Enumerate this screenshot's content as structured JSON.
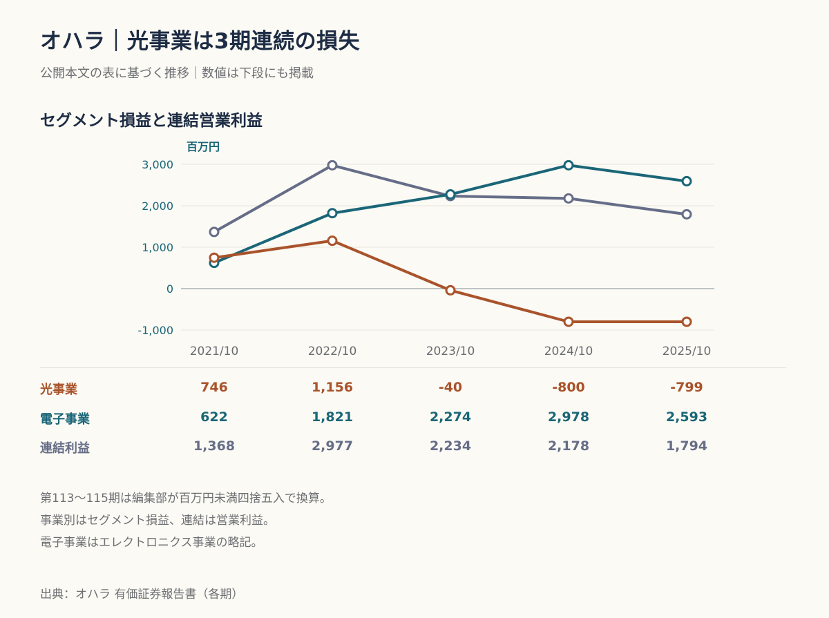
{
  "title": "オハラ｜光事業は3期連続の損失",
  "subtitle": "公開本文の表に基づく推移｜数値は下段にも掲載",
  "section_title": "セグメント損益と連結営業利益",
  "colors": {
    "optical": "#a9532b",
    "electronics": "#1a6678",
    "consolidated": "#666d88",
    "background": "#fbfaf4"
  },
  "chart_data": {
    "type": "line",
    "unit": "百万円",
    "categories": [
      "2021/10",
      "2022/10",
      "2023/10",
      "2024/10",
      "2025/10"
    ],
    "y_ticks": [
      "3,000",
      "2,000",
      "1,000",
      "0",
      "-1,000"
    ],
    "ylim": [
      -1000,
      3000
    ],
    "grid": true,
    "series": [
      {
        "name": "連結利益",
        "values": [
          1368,
          2977,
          2234,
          2178,
          1794
        ]
      },
      {
        "name": "電子事業",
        "values": [
          622,
          1821,
          2274,
          2978,
          2593
        ]
      },
      {
        "name": "光事業",
        "values": [
          746,
          1156,
          -40,
          -800,
          -799
        ]
      }
    ]
  },
  "table": {
    "rows": [
      {
        "label": "光事業",
        "values": [
          "746",
          "1,156",
          "-40",
          "-800",
          "-799"
        ]
      },
      {
        "label": "電子事業",
        "values": [
          "622",
          "1,821",
          "2,274",
          "2,978",
          "2,593"
        ]
      },
      {
        "label": "連結利益",
        "values": [
          "1,368",
          "2,977",
          "2,234",
          "2,178",
          "1,794"
        ]
      }
    ]
  },
  "notes": [
    "第113〜115期は編集部が百万円未満四捨五入で換算。",
    "事業別はセグメント損益、連結は営業利益。",
    "電子事業はエレクトロニクス事業の略記。"
  ],
  "source": "出典：オハラ 有価証券報告書（各期）"
}
